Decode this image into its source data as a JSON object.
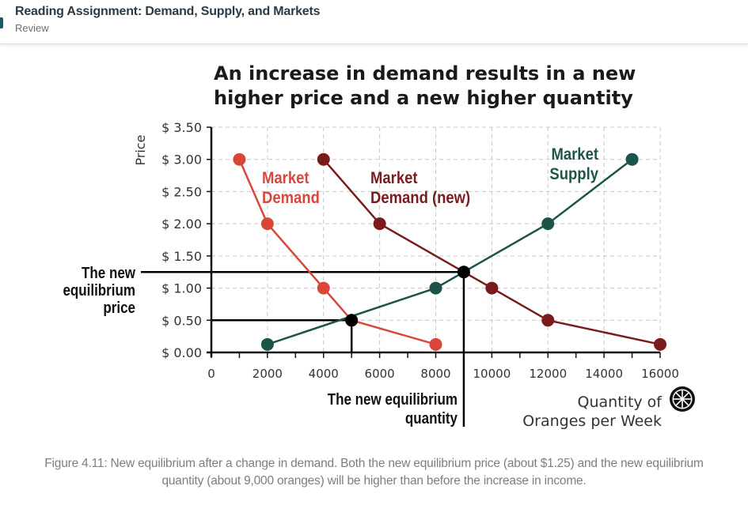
{
  "header": {
    "title": "Reading Assignment: Demand, Supply, and Markets",
    "subtitle": "Review"
  },
  "colors": {
    "header_accent": "#1a5a63",
    "demand": "#d9473b",
    "demand_new": "#7a1c1c",
    "supply": "#1d5449",
    "equilibrium": "#000000",
    "grid": "#c8c8c8"
  },
  "chart_data": {
    "type": "line",
    "title": "An increase in demand results in a new higher price and a new higher quantity",
    "xlabel": "Quantity of Oranges per Week",
    "xlabel_lines": [
      "Quantity of",
      "Oranges per Week"
    ],
    "ylabel": "Price",
    "xlim": [
      0,
      16000
    ],
    "ylim": [
      0,
      3.5
    ],
    "x_ticks": [
      0,
      2000,
      4000,
      6000,
      8000,
      10000,
      12000,
      14000,
      16000
    ],
    "x_tick_labels": [
      "0",
      "2000",
      "4000",
      "6000",
      "8000",
      "10000",
      "12000",
      "14000",
      "16000"
    ],
    "y_ticks": [
      0,
      0.5,
      1.0,
      1.5,
      2.0,
      2.5,
      3.0,
      3.5
    ],
    "y_tick_labels": [
      "$ 0.00",
      "$ 0.50",
      "$ 1.00",
      "$ 1.50",
      "$ 2.00",
      "$ 2.50",
      "$ 3.00",
      "$ 3.50"
    ],
    "grid": true,
    "series": [
      {
        "name": "Market Demand",
        "label_lines": [
          "Market",
          "Demand"
        ],
        "color": "#d9473b",
        "points": [
          [
            1000,
            3.0
          ],
          [
            2000,
            2.0
          ],
          [
            4000,
            1.0
          ],
          [
            5000,
            0.5
          ],
          [
            8000,
            0.125
          ]
        ]
      },
      {
        "name": "Market Demand (new)",
        "label_lines": [
          "Market",
          "Demand (new)"
        ],
        "color": "#7a1c1c",
        "points": [
          [
            4000,
            3.0
          ],
          [
            6000,
            2.0
          ],
          [
            10000,
            1.0
          ],
          [
            12000,
            0.5
          ],
          [
            16000,
            0.125
          ]
        ]
      },
      {
        "name": "Market Supply",
        "label_lines": [
          "Market",
          "Supply"
        ],
        "color": "#1d5449",
        "points": [
          [
            2000,
            0.125
          ],
          [
            8000,
            1.0
          ],
          [
            12000,
            2.0
          ],
          [
            15000,
            3.0
          ]
        ]
      }
    ],
    "equilibria": [
      {
        "name": "original",
        "quantity": 5000,
        "price": 0.5
      },
      {
        "name": "new",
        "quantity": 9000,
        "price": 1.25
      }
    ],
    "annotations": {
      "new_price_lines": [
        "The new",
        "equilibrium",
        "price"
      ],
      "new_quantity_lines": [
        "The new equilibrium",
        "quantity"
      ]
    },
    "icon": "orange-slice-icon"
  },
  "caption": "Figure 4.11: New equilibrium after a change in demand. Both the new equilibrium price (about $1.25) and the new equilibrium quantity (about 9,000 oranges) will be higher than before the increase in income."
}
